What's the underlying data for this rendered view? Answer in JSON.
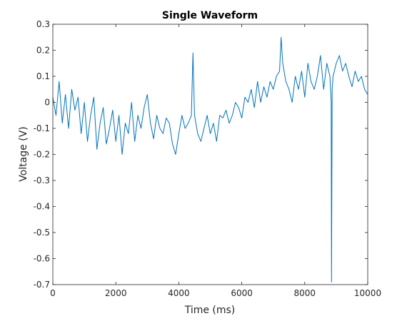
{
  "chart_data": {
    "type": "line",
    "title": "Single Waveform",
    "xlabel": "Time (ms)",
    "ylabel": "Voltage (V)",
    "xlim": [
      0,
      10000
    ],
    "ylim": [
      -0.7,
      0.3
    ],
    "x_ticks": [
      0,
      2000,
      4000,
      6000,
      8000,
      10000
    ],
    "x_tick_labels": [
      "0",
      "2000",
      "4000",
      "6000",
      "8000",
      "10000"
    ],
    "y_ticks": [
      0.3,
      0.2,
      0.1,
      0,
      -0.1,
      -0.2,
      -0.3,
      -0.4,
      -0.5,
      -0.6,
      -0.7
    ],
    "y_tick_labels": [
      "0.3",
      "0.2",
      "0.1",
      "0",
      "-0.1",
      "-0.2",
      "-0.3",
      "-0.4",
      "-0.5",
      "-0.6",
      "-0.7"
    ],
    "grid": false,
    "line_color": "#0072BD",
    "series": [
      {
        "x": [
          0,
          100,
          200,
          300,
          400,
          500,
          600,
          700,
          800,
          900,
          1000,
          1100,
          1200,
          1300,
          1400,
          1500,
          1600,
          1700,
          1800,
          1900,
          2000,
          2100,
          2200,
          2300,
          2400,
          2500,
          2600,
          2700,
          2800,
          2900,
          3000,
          3100,
          3200,
          3300,
          3400,
          3500,
          3600,
          3700,
          3800,
          3900,
          4000,
          4100,
          4200,
          4300,
          4400,
          4450,
          4500,
          4600,
          4700,
          4800,
          4900,
          5000,
          5100,
          5200,
          5300,
          5400,
          5500,
          5600,
          5700,
          5800,
          5900,
          6000,
          6100,
          6200,
          6300,
          6400,
          6500,
          6600,
          6700,
          6800,
          6900,
          7000,
          7100,
          7200,
          7250,
          7300,
          7400,
          7500,
          7600,
          7700,
          7800,
          7900,
          8000,
          8100,
          8200,
          8300,
          8400,
          8500,
          8600,
          8700,
          8800,
          8840,
          8850,
          8870,
          8900,
          9000,
          9100,
          9200,
          9300,
          9400,
          9500,
          9600,
          9700,
          9800,
          9900,
          10000
        ],
        "values": [
          0.02,
          -0.05,
          0.08,
          -0.08,
          0.03,
          -0.1,
          0.05,
          -0.03,
          0.02,
          -0.12,
          0.0,
          -0.15,
          -0.05,
          0.02,
          -0.18,
          -0.08,
          -0.02,
          -0.16,
          -0.1,
          -0.03,
          -0.15,
          -0.05,
          -0.2,
          -0.08,
          -0.12,
          0.0,
          -0.15,
          -0.05,
          -0.1,
          -0.02,
          0.03,
          -0.08,
          -0.14,
          -0.05,
          -0.1,
          -0.12,
          -0.06,
          -0.08,
          -0.16,
          -0.2,
          -0.12,
          -0.05,
          -0.1,
          -0.08,
          -0.05,
          0.19,
          -0.05,
          -0.12,
          -0.15,
          -0.1,
          -0.05,
          -0.12,
          -0.08,
          -0.15,
          -0.05,
          -0.06,
          -0.03,
          -0.08,
          -0.05,
          0.0,
          -0.02,
          -0.06,
          0.02,
          0.0,
          0.05,
          -0.02,
          0.08,
          0.0,
          0.06,
          0.02,
          0.08,
          0.05,
          0.1,
          0.12,
          0.25,
          0.15,
          0.08,
          0.05,
          0.0,
          0.1,
          0.05,
          0.12,
          0.02,
          0.15,
          0.08,
          0.05,
          0.1,
          0.18,
          0.05,
          0.15,
          0.1,
          0.0,
          -0.69,
          0.05,
          0.1,
          0.15,
          0.18,
          0.12,
          0.15,
          0.1,
          0.06,
          0.12,
          0.08,
          0.1,
          0.05,
          0.03
        ]
      }
    ]
  }
}
